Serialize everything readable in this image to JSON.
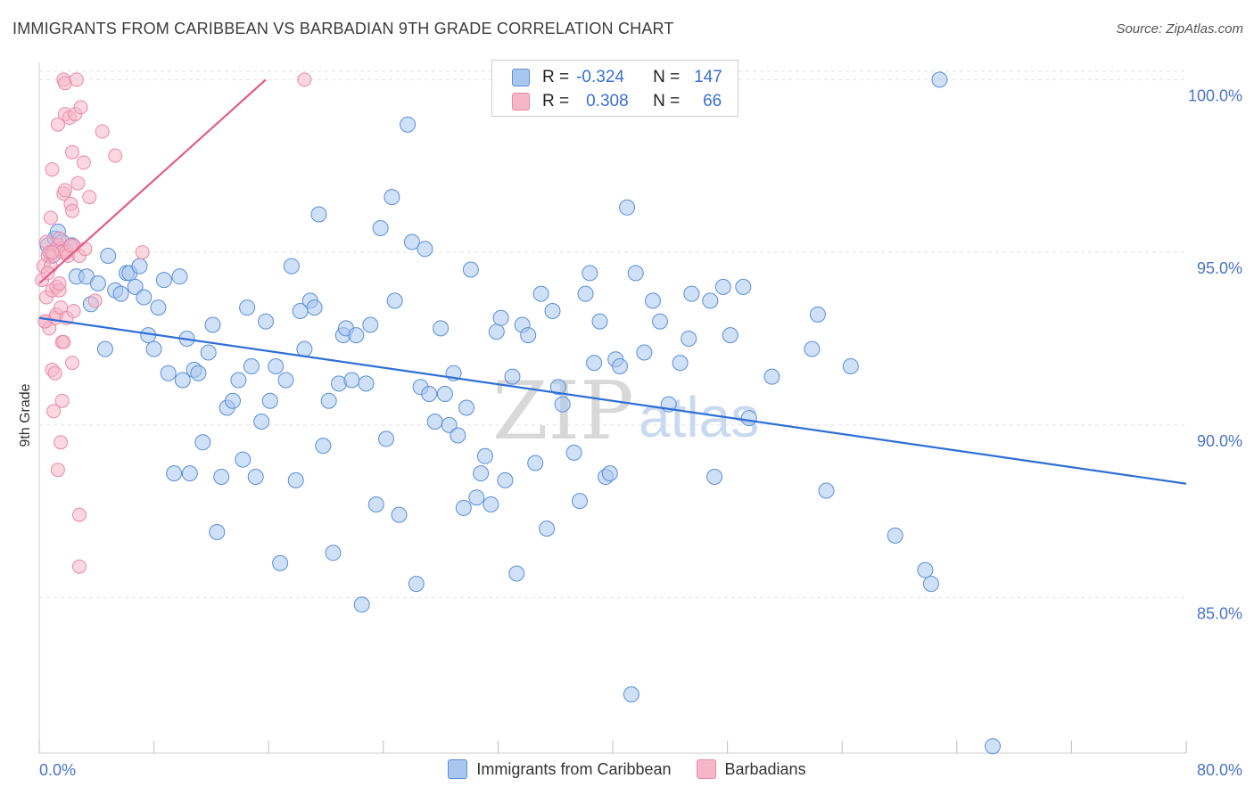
{
  "header": {
    "title": "IMMIGRANTS FROM CARIBBEAN VS BARBADIAN 9TH GRADE CORRELATION CHART",
    "source": "Source: ZipAtlas.com"
  },
  "watermark": {
    "zip": "ZIP",
    "atlas": "atlas"
  },
  "legend": {
    "rows": [
      {
        "r_label": "R =",
        "r_value": "-0.324",
        "n_label": "N =",
        "n_value": "147",
        "color": "#a9c6ee"
      },
      {
        "r_label": "R =",
        "r_value": "0.308",
        "n_label": "N =",
        "n_value": "66",
        "color": "#f6b6c9"
      }
    ]
  },
  "bottom_legend": {
    "items": [
      {
        "label": "Immigrants from Caribbean",
        "color": "#a9c6ee"
      },
      {
        "label": "Barbadians",
        "color": "#f6b6c9"
      }
    ]
  },
  "chart_data": {
    "type": "scatter",
    "title": "IMMIGRANTS FROM CARIBBEAN VS BARBADIAN 9TH GRADE CORRELATION CHART",
    "xlabel": "",
    "ylabel": "9th Grade",
    "xlim": [
      0,
      80
    ],
    "ylim": [
      80.5,
      100.5
    ],
    "x_tick_labels": [
      "0.0%",
      "80.0%"
    ],
    "y_ticks": [
      85,
      90,
      95,
      100
    ],
    "y_tick_labels": [
      "85.0%",
      "90.0%",
      "95.0%",
      "100.0%"
    ],
    "grid": true,
    "legend_position": "top-center",
    "series": [
      {
        "name": "Immigrants from Caribbean",
        "color": "#5b8fd9",
        "fill": "#a9c6ee",
        "trend": {
          "x": [
            0,
            80
          ],
          "y": [
            93.1,
            88.3
          ],
          "color": "#2e6fd6"
        },
        "points": [
          [
            0.6,
            95.2
          ],
          [
            0.9,
            94.9
          ],
          [
            1.1,
            95.4
          ],
          [
            1.3,
            95.6
          ],
          [
            1.8,
            95.1
          ],
          [
            1.6,
            95.3
          ],
          [
            2.3,
            95.2
          ],
          [
            2.6,
            94.3
          ],
          [
            3.3,
            94.3
          ],
          [
            3.6,
            93.5
          ],
          [
            4.1,
            94.1
          ],
          [
            4.6,
            92.2
          ],
          [
            4.8,
            94.9
          ],
          [
            5.3,
            93.9
          ],
          [
            5.7,
            93.8
          ],
          [
            6.1,
            94.4
          ],
          [
            6.3,
            94.4
          ],
          [
            6.7,
            94.0
          ],
          [
            7.0,
            94.6
          ],
          [
            7.3,
            93.7
          ],
          [
            7.6,
            92.6
          ],
          [
            8.0,
            92.2
          ],
          [
            8.3,
            93.4
          ],
          [
            8.7,
            94.2
          ],
          [
            9.0,
            91.5
          ],
          [
            9.4,
            88.6
          ],
          [
            9.8,
            94.3
          ],
          [
            10.0,
            91.3
          ],
          [
            10.3,
            92.5
          ],
          [
            10.5,
            88.6
          ],
          [
            10.8,
            91.6
          ],
          [
            11.1,
            91.5
          ],
          [
            11.4,
            89.5
          ],
          [
            11.8,
            92.1
          ],
          [
            12.1,
            92.9
          ],
          [
            12.4,
            86.9
          ],
          [
            12.7,
            88.5
          ],
          [
            13.1,
            90.5
          ],
          [
            13.5,
            90.7
          ],
          [
            13.9,
            91.3
          ],
          [
            14.2,
            89.0
          ],
          [
            14.5,
            93.4
          ],
          [
            14.8,
            91.7
          ],
          [
            15.1,
            88.5
          ],
          [
            15.5,
            90.1
          ],
          [
            15.8,
            93.0
          ],
          [
            16.1,
            90.7
          ],
          [
            16.5,
            91.7
          ],
          [
            16.8,
            86.0
          ],
          [
            17.2,
            91.3
          ],
          [
            17.6,
            94.6
          ],
          [
            17.9,
            88.4
          ],
          [
            18.2,
            93.3
          ],
          [
            18.5,
            92.2
          ],
          [
            18.9,
            93.6
          ],
          [
            19.2,
            93.4
          ],
          [
            19.5,
            96.1
          ],
          [
            19.8,
            89.4
          ],
          [
            20.2,
            90.7
          ],
          [
            20.5,
            86.3
          ],
          [
            20.9,
            91.2
          ],
          [
            21.2,
            92.6
          ],
          [
            21.4,
            92.8
          ],
          [
            21.8,
            91.3
          ],
          [
            22.1,
            92.6
          ],
          [
            22.5,
            84.8
          ],
          [
            22.8,
            91.2
          ],
          [
            23.1,
            92.9
          ],
          [
            23.5,
            87.7
          ],
          [
            23.8,
            95.7
          ],
          [
            24.2,
            89.6
          ],
          [
            24.6,
            96.6
          ],
          [
            24.8,
            93.6
          ],
          [
            25.1,
            87.4
          ],
          [
            25.7,
            98.7
          ],
          [
            26.0,
            95.3
          ],
          [
            26.3,
            85.4
          ],
          [
            26.6,
            91.1
          ],
          [
            26.9,
            95.1
          ],
          [
            27.2,
            90.9
          ],
          [
            27.6,
            90.1
          ],
          [
            28.0,
            92.8
          ],
          [
            28.3,
            90.9
          ],
          [
            28.6,
            90.0
          ],
          [
            28.9,
            91.5
          ],
          [
            29.2,
            89.7
          ],
          [
            29.6,
            87.6
          ],
          [
            29.8,
            90.5
          ],
          [
            30.1,
            94.5
          ],
          [
            30.5,
            87.9
          ],
          [
            30.8,
            88.6
          ],
          [
            31.1,
            89.1
          ],
          [
            31.5,
            87.7
          ],
          [
            31.9,
            92.7
          ],
          [
            32.2,
            93.1
          ],
          [
            32.5,
            88.4
          ],
          [
            33.0,
            91.4
          ],
          [
            33.3,
            85.7
          ],
          [
            33.7,
            92.9
          ],
          [
            34.1,
            92.6
          ],
          [
            34.6,
            88.9
          ],
          [
            35.0,
            93.8
          ],
          [
            35.4,
            87.0
          ],
          [
            35.8,
            93.3
          ],
          [
            36.2,
            91.1
          ],
          [
            36.5,
            90.6
          ],
          [
            37.3,
            89.2
          ],
          [
            37.7,
            87.8
          ],
          [
            38.1,
            93.8
          ],
          [
            38.4,
            94.4
          ],
          [
            38.7,
            91.8
          ],
          [
            39.1,
            93.0
          ],
          [
            39.5,
            88.5
          ],
          [
            39.8,
            88.6
          ],
          [
            40.2,
            91.9
          ],
          [
            40.5,
            91.7
          ],
          [
            41.0,
            96.3
          ],
          [
            41.3,
            82.2
          ],
          [
            41.6,
            94.4
          ],
          [
            42.2,
            92.1
          ],
          [
            42.8,
            93.6
          ],
          [
            43.3,
            93.0
          ],
          [
            43.9,
            90.6
          ],
          [
            44.7,
            91.8
          ],
          [
            45.3,
            92.5
          ],
          [
            45.5,
            93.8
          ],
          [
            46.8,
            93.6
          ],
          [
            47.1,
            88.5
          ],
          [
            47.7,
            94.0
          ],
          [
            48.2,
            92.6
          ],
          [
            49.1,
            94.0
          ],
          [
            49.5,
            90.2
          ],
          [
            51.1,
            91.4
          ],
          [
            53.9,
            92.2
          ],
          [
            54.3,
            93.2
          ],
          [
            54.9,
            88.1
          ],
          [
            56.6,
            91.7
          ],
          [
            59.7,
            86.8
          ],
          [
            61.8,
            85.8
          ],
          [
            62.2,
            85.4
          ],
          [
            62.8,
            100.0
          ],
          [
            66.5,
            80.7
          ]
        ]
      },
      {
        "name": "Barbadians",
        "color": "#e98aa8",
        "fill": "#f6b6c9",
        "trend": {
          "x": [
            0,
            15.8
          ],
          "y": [
            94.1,
            100.0
          ],
          "color": "#e35d87"
        },
        "points": [
          [
            0.2,
            94.2
          ],
          [
            0.3,
            94.6
          ],
          [
            0.4,
            93.0
          ],
          [
            0.5,
            93.7
          ],
          [
            0.5,
            95.3
          ],
          [
            0.6,
            94.9
          ],
          [
            0.7,
            92.8
          ],
          [
            0.7,
            95.0
          ],
          [
            0.8,
            94.6
          ],
          [
            0.8,
            96.0
          ],
          [
            0.9,
            93.9
          ],
          [
            0.9,
            91.6
          ],
          [
            0.9,
            97.4
          ],
          [
            1.0,
            94.9
          ],
          [
            1.1,
            91.5
          ],
          [
            1.1,
            93.1
          ],
          [
            1.2,
            93.2
          ],
          [
            1.2,
            94.0
          ],
          [
            1.3,
            95.2
          ],
          [
            1.3,
            98.7
          ],
          [
            1.3,
            88.7
          ],
          [
            1.4,
            93.9
          ],
          [
            1.4,
            94.1
          ],
          [
            1.5,
            93.4
          ],
          [
            1.5,
            95.1
          ],
          [
            1.5,
            89.5
          ],
          [
            1.6,
            90.7
          ],
          [
            1.6,
            92.4
          ],
          [
            1.6,
            95.0
          ],
          [
            1.7,
            92.4
          ],
          [
            1.7,
            96.7
          ],
          [
            1.7,
            100.0
          ],
          [
            1.8,
            99.0
          ],
          [
            1.8,
            96.8
          ],
          [
            1.8,
            99.9
          ],
          [
            1.9,
            95.0
          ],
          [
            1.9,
            93.1
          ],
          [
            2.0,
            94.9
          ],
          [
            2.1,
            98.9
          ],
          [
            2.2,
            96.4
          ],
          [
            2.3,
            97.9
          ],
          [
            2.3,
            96.2
          ],
          [
            2.3,
            91.8
          ],
          [
            2.4,
            95.2
          ],
          [
            2.4,
            93.3
          ],
          [
            2.5,
            99.0
          ],
          [
            2.6,
            100.0
          ],
          [
            2.7,
            97.0
          ],
          [
            2.8,
            94.9
          ],
          [
            2.8,
            87.4
          ],
          [
            2.8,
            85.9
          ],
          [
            2.9,
            99.2
          ],
          [
            3.1,
            97.6
          ],
          [
            3.2,
            95.1
          ],
          [
            3.5,
            96.6
          ],
          [
            3.9,
            93.6
          ],
          [
            4.4,
            98.5
          ],
          [
            5.3,
            97.8
          ],
          [
            7.2,
            95.0
          ],
          [
            18.5,
            100.0
          ],
          [
            0.4,
            93.0
          ],
          [
            1.0,
            90.4
          ],
          [
            0.6,
            94.4
          ],
          [
            1.4,
            95.4
          ],
          [
            2.2,
            95.2
          ],
          [
            0.9,
            95.0
          ]
        ]
      }
    ]
  }
}
